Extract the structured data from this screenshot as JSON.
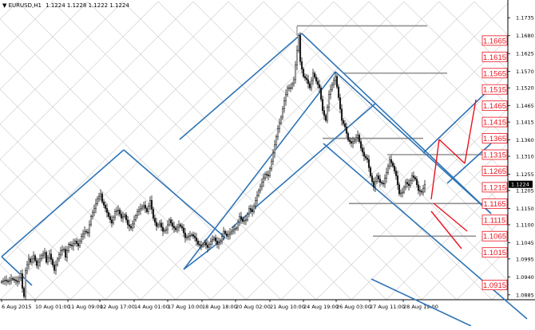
{
  "header": {
    "symbol": "EURUSD,H1",
    "ohlc": "1.1224 1.1228 1.1222 1.1224",
    "arrow": "▼"
  },
  "colors": {
    "grid": "#c8c8c8",
    "axis": "#000000",
    "candle": "#1a1a1a",
    "channel": "#2f74b5",
    "projection": "#e8141e",
    "level_line": "#909090",
    "label_text": "#e8141e",
    "label_border": "#e8141e",
    "price_badge_bg": "#000000",
    "price_badge_text": "#ffffff"
  },
  "chart_data": {
    "type": "candlestick",
    "instrument": "EURUSD",
    "timeframe": "H1",
    "x_tick_labels": [
      "6 Aug 2015",
      "10 Aug 01:00",
      "11 Aug 09:00",
      "12 Aug 17:00",
      "14 Aug 01:00",
      "17 Aug 10:00",
      "18 Aug 18:00",
      "20 Aug 02:00",
      "21 Aug 10:00",
      "24 Aug 19:00",
      "26 Aug 03:00",
      "27 Aug 11:00",
      "28 Aug 19:00"
    ],
    "y_tick_labels": [
      "1.1735",
      "1.1680",
      "1.1625",
      "1.1570",
      "1.1520",
      "1.1465",
      "1.1415",
      "1.1360",
      "1.1310",
      "1.1255",
      "1.1205",
      "1.1150",
      "1.1100",
      "1.1045",
      "1.0995",
      "1.0940",
      "1.0885"
    ],
    "ylim": [
      1.087,
      1.176
    ],
    "current_price": "1.1224",
    "level_labels": [
      "1.1665",
      "1.1615",
      "1.1565",
      "1.1515",
      "1.1465",
      "1.1415",
      "1.1365",
      "1.1315",
      "1.1265",
      "1.1215",
      "1.1165",
      "1.1115",
      "1.1065",
      "1.1015",
      "1.0915"
    ],
    "close_path": [
      [
        0,
        1.0925
      ],
      [
        2,
        1.093
      ],
      [
        4,
        1.0925
      ],
      [
        6,
        1.0935
      ],
      [
        8,
        1.093
      ],
      [
        10,
        1.0925
      ],
      [
        12,
        1.095
      ],
      [
        13,
        1.0905
      ],
      [
        14,
        1.088
      ],
      [
        15,
        1.096
      ],
      [
        17,
        1.0995
      ],
      [
        18,
        1.0985
      ],
      [
        20,
        1.1005
      ],
      [
        22,
        1.0975
      ],
      [
        25,
        1.1005
      ],
      [
        27,
        1.1015
      ],
      [
        28,
        1.0985
      ],
      [
        30,
        1.101
      ],
      [
        33,
        1.096
      ],
      [
        35,
        1.0995
      ],
      [
        37,
        1.102
      ],
      [
        39,
        1.1025
      ],
      [
        40,
        1.1
      ],
      [
        42,
        1.104
      ],
      [
        44,
        1.1035
      ],
      [
        46,
        1.105
      ],
      [
        48,
        1.1035
      ],
      [
        50,
        1.1065
      ],
      [
        52,
        1.108
      ],
      [
        54,
        1.1075
      ],
      [
        56,
        1.1125
      ],
      [
        58,
        1.115
      ],
      [
        60,
        1.118
      ],
      [
        62,
        1.1195
      ],
      [
        63,
        1.117
      ],
      [
        65,
        1.115
      ],
      [
        67,
        1.1125
      ],
      [
        69,
        1.1105
      ],
      [
        71,
        1.114
      ],
      [
        73,
        1.1145
      ],
      [
        75,
        1.112
      ],
      [
        77,
        1.113
      ],
      [
        79,
        1.11
      ],
      [
        81,
        1.109
      ],
      [
        83,
        1.1115
      ],
      [
        85,
        1.114
      ],
      [
        87,
        1.115
      ],
      [
        89,
        1.116
      ],
      [
        91,
        1.114
      ],
      [
        93,
        1.1175
      ],
      [
        95,
        1.112
      ],
      [
        97,
        1.1095
      ],
      [
        99,
        1.1105
      ],
      [
        101,
        1.108
      ],
      [
        103,
        1.1085
      ],
      [
        105,
        1.1115
      ],
      [
        107,
        1.1095
      ],
      [
        109,
        1.1085
      ],
      [
        111,
        1.11
      ],
      [
        113,
        1.109
      ],
      [
        115,
        1.106
      ],
      [
        117,
        1.1065
      ],
      [
        119,
        1.107
      ],
      [
        121,
        1.106
      ],
      [
        123,
        1.104
      ],
      [
        125,
        1.1035
      ],
      [
        127,
        1.1045
      ],
      [
        129,
        1.103
      ],
      [
        131,
        1.105
      ],
      [
        133,
        1.106
      ],
      [
        135,
        1.104
      ],
      [
        137,
        1.105
      ],
      [
        139,
        1.108
      ],
      [
        141,
        1.1065
      ],
      [
        143,
        1.1075
      ],
      [
        145,
        1.1085
      ],
      [
        147,
        1.109
      ],
      [
        149,
        1.1125
      ],
      [
        151,
        1.111
      ],
      [
        153,
        1.1115
      ],
      [
        155,
        1.115
      ],
      [
        157,
        1.114
      ],
      [
        159,
        1.1175
      ],
      [
        161,
        1.1205
      ],
      [
        163,
        1.123
      ],
      [
        165,
        1.1255
      ],
      [
        167,
        1.125
      ],
      [
        169,
        1.1295
      ],
      [
        171,
        1.1345
      ],
      [
        173,
        1.1395
      ],
      [
        175,
        1.143
      ],
      [
        177,
        1.148
      ],
      [
        179,
        1.152
      ],
      [
        181,
        1.152
      ],
      [
        183,
        1.1545
      ],
      [
        185,
        1.1635
      ],
      [
        186,
        1.168
      ],
      [
        187,
        1.16
      ],
      [
        189,
        1.1555
      ],
      [
        191,
        1.1545
      ],
      [
        193,
        1.152
      ],
      [
        195,
        1.1565
      ],
      [
        197,
        1.154
      ],
      [
        199,
        1.152
      ],
      [
        201,
        1.145
      ],
      [
        203,
        1.142
      ],
      [
        205,
        1.15
      ],
      [
        207,
        1.153
      ],
      [
        209,
        1.1555
      ],
      [
        211,
        1.149
      ],
      [
        213,
        1.142
      ],
      [
        215,
        1.14
      ],
      [
        217,
        1.136
      ],
      [
        219,
        1.135
      ],
      [
        221,
        1.136
      ],
      [
        223,
        1.1375
      ],
      [
        225,
        1.1335
      ],
      [
        227,
        1.131
      ],
      [
        229,
        1.13
      ],
      [
        231,
        1.125
      ],
      [
        233,
        1.1215
      ],
      [
        235,
        1.125
      ],
      [
        237,
        1.123
      ],
      [
        239,
        1.1225
      ],
      [
        241,
        1.126
      ],
      [
        243,
        1.13
      ],
      [
        245,
        1.128
      ],
      [
        247,
        1.125
      ],
      [
        249,
        1.1195
      ],
      [
        251,
        1.12
      ],
      [
        253,
        1.123
      ],
      [
        255,
        1.122
      ],
      [
        257,
        1.125
      ],
      [
        259,
        1.124
      ],
      [
        261,
        1.1205
      ],
      [
        263,
        1.12
      ],
      [
        265,
        1.1224
      ]
    ]
  }
}
